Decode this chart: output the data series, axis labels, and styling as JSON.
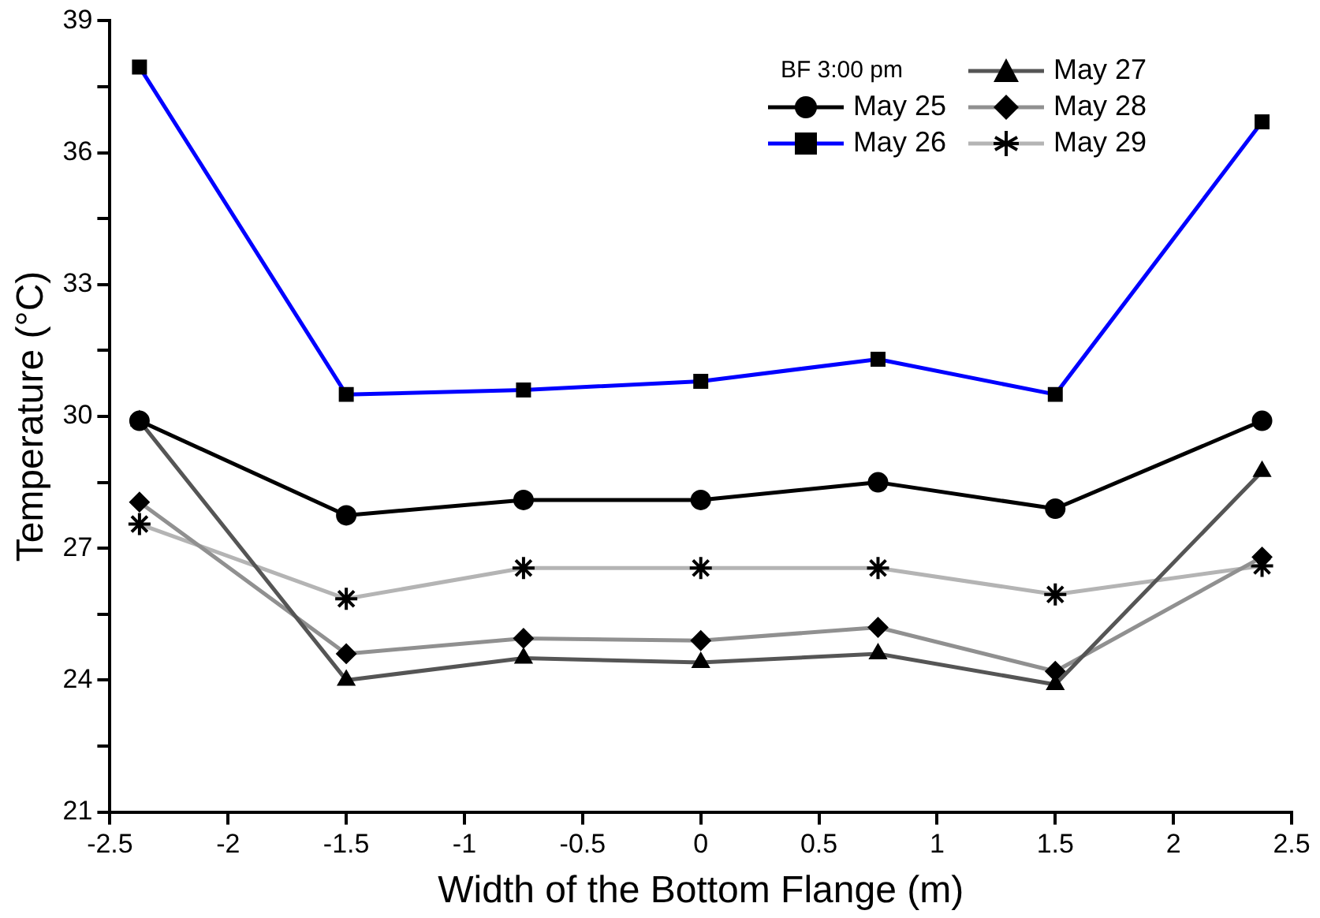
{
  "chart_data": {
    "type": "line",
    "xlabel": "Width of the Bottom Flange (m)",
    "ylabel": "Temperature (°C)",
    "legend_title": "BF 3:00 pm",
    "legend": "top right",
    "grid": false,
    "x": [
      -2.375,
      -1.5,
      -0.75,
      0,
      0.75,
      1.5,
      2.375
    ],
    "xlim": [
      -2.5,
      2.5
    ],
    "xticks": [
      -2.5,
      -2,
      -1.5,
      -1,
      -0.5,
      0,
      0.5,
      1,
      1.5,
      2,
      2.5
    ],
    "ylim": [
      21,
      39
    ],
    "yticks": [
      21,
      {
        "value": 22.5,
        "label": null
      },
      24,
      {
        "value": 25.5,
        "label": null
      },
      27,
      {
        "value": 28.5,
        "label": null
      },
      30,
      {
        "value": 31.5,
        "label": null
      },
      33,
      {
        "value": 34.5,
        "label": null
      },
      36,
      {
        "value": 37.5,
        "label": null
      },
      39
    ],
    "series": [
      {
        "name": "May 25",
        "color": "#000000",
        "marker": "circle",
        "values": [
          29.9,
          27.75,
          28.1,
          28.1,
          28.5,
          27.9,
          29.9
        ]
      },
      {
        "name": "May 26",
        "color": "#0000ff",
        "marker": "square",
        "values": [
          37.95,
          30.5,
          30.6,
          30.8,
          31.3,
          30.5,
          36.7
        ]
      },
      {
        "name": "May 27",
        "color": "#555555",
        "marker": "triangle",
        "values": [
          29.9,
          24.0,
          24.5,
          24.4,
          24.6,
          23.9,
          28.75
        ]
      },
      {
        "name": "May 28",
        "color": "#909090",
        "marker": "diamond",
        "values": [
          28.05,
          24.6,
          24.95,
          24.9,
          25.2,
          24.2,
          26.8
        ]
      },
      {
        "name": "May 29",
        "color": "#b4b4b4",
        "marker": "cross",
        "values": [
          27.55,
          25.85,
          26.55,
          26.55,
          26.55,
          25.95,
          26.6
        ]
      }
    ]
  }
}
